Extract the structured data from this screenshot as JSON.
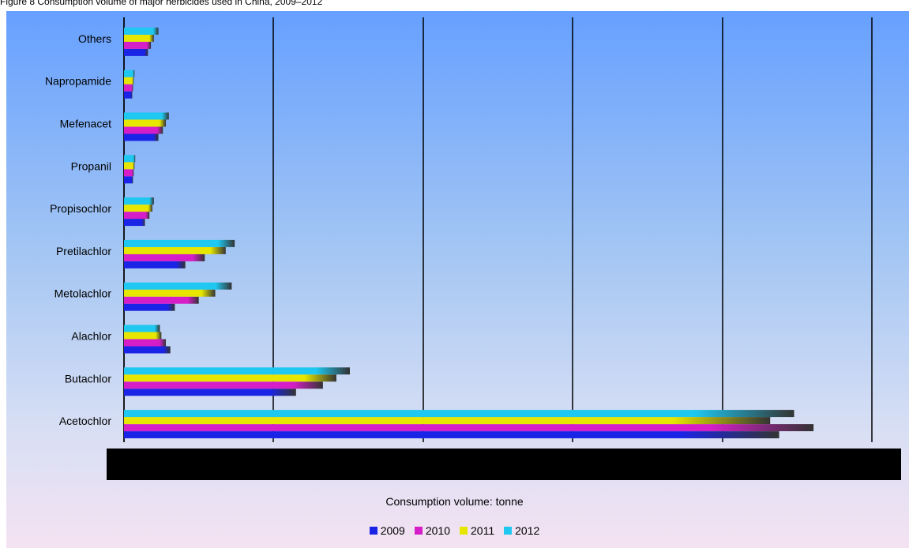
{
  "top_caption": "Figure 8 Consumption volume of major herbicides used in China, 2009–2012",
  "colors": {
    "2009": "#1a24e6",
    "2010": "#d51ec8",
    "2011": "#e6e600",
    "2012": "#1ec8f0",
    "background_top": "#66a0ff",
    "background_bottom": "#f4e2f2",
    "x_axis_band": "#000000"
  },
  "chart_data": {
    "type": "bar",
    "orientation": "horizontal",
    "categories": [
      "Acetochlor",
      "Butachlor",
      "Alachlor",
      "Metolachlor",
      "Pretilachlor",
      "Propisochlor",
      "Propanil",
      "Mefenacet",
      "Napropamide",
      "Others"
    ],
    "series": [
      {
        "name": "2009",
        "values": [
          4380,
          1150,
          310,
          340,
          410,
          140,
          60,
          230,
          55,
          160
        ]
      },
      {
        "name": "2010",
        "values": [
          4610,
          1330,
          280,
          500,
          540,
          170,
          65,
          260,
          60,
          180
        ]
      },
      {
        "name": "2011",
        "values": [
          4320,
          1420,
          250,
          610,
          680,
          190,
          70,
          280,
          65,
          200
        ]
      },
      {
        "name": "2012",
        "values": [
          4480,
          1510,
          240,
          720,
          740,
          200,
          75,
          300,
          70,
          230
        ]
      }
    ],
    "xlim": [
      0,
      5000
    ],
    "xlabel": "Consumption volume: tonne",
    "ylabel": "",
    "grid": "vertical",
    "legend_position": "bottom"
  }
}
